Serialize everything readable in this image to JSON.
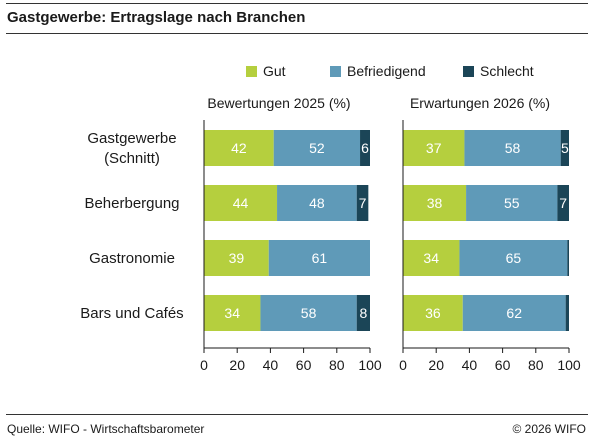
{
  "header": {
    "title": "Gastgewerbe: Ertragslage nach Branchen"
  },
  "footer": {
    "source": "Quelle: WIFO - Wirtschaftsbarometer",
    "copyright": "© 2026 WIFO"
  },
  "chart_data": {
    "type": "bar",
    "orientation": "horizontal",
    "stacked": true,
    "categories": [
      [
        "Gastgewerbe",
        "(Schnitt)"
      ],
      [
        "Beherbergung"
      ],
      [
        "Gastronomie"
      ],
      [
        "Bars und Cafés"
      ]
    ],
    "legend": {
      "placement": "top-right",
      "entries": [
        {
          "name": "Gut",
          "color": "#b5cf3e"
        },
        {
          "name": "Befriedigend",
          "color": "#5f9ab8"
        },
        {
          "name": "Schlecht",
          "color": "#1b4557"
        }
      ]
    },
    "panels": [
      {
        "title": "Bewertungen 2025 (%)",
        "xlim": [
          0,
          100
        ],
        "xticks": [
          0,
          20,
          40,
          60,
          80,
          100
        ],
        "series": [
          {
            "name": "Gut",
            "values": [
              42,
              44,
              39,
              34
            ],
            "labels": [
              "42",
              "44",
              "39",
              "34"
            ]
          },
          {
            "name": "Befriedigend",
            "values": [
              52,
              48,
              61,
              58
            ],
            "labels": [
              "52",
              "48",
              "61",
              "58"
            ]
          },
          {
            "name": "Schlecht",
            "values": [
              6,
              7,
              0,
              8
            ],
            "labels": [
              "6",
              "7",
              "",
              "8"
            ]
          }
        ]
      },
      {
        "title": "Erwartungen 2026 (%)",
        "xlim": [
          0,
          100
        ],
        "xticks": [
          0,
          20,
          40,
          60,
          80,
          100
        ],
        "series": [
          {
            "name": "Gut",
            "values": [
              37,
              38,
              34,
              36
            ],
            "labels": [
              "37",
              "38",
              "34",
              "36"
            ]
          },
          {
            "name": "Befriedigend",
            "values": [
              58,
              55,
              65,
              62
            ],
            "labels": [
              "58",
              "55",
              "65",
              "62"
            ]
          },
          {
            "name": "Schlecht",
            "values": [
              5,
              7,
              1,
              2
            ],
            "labels": [
              "5",
              "7",
              "",
              ""
            ]
          }
        ]
      }
    ],
    "grid": false
  }
}
